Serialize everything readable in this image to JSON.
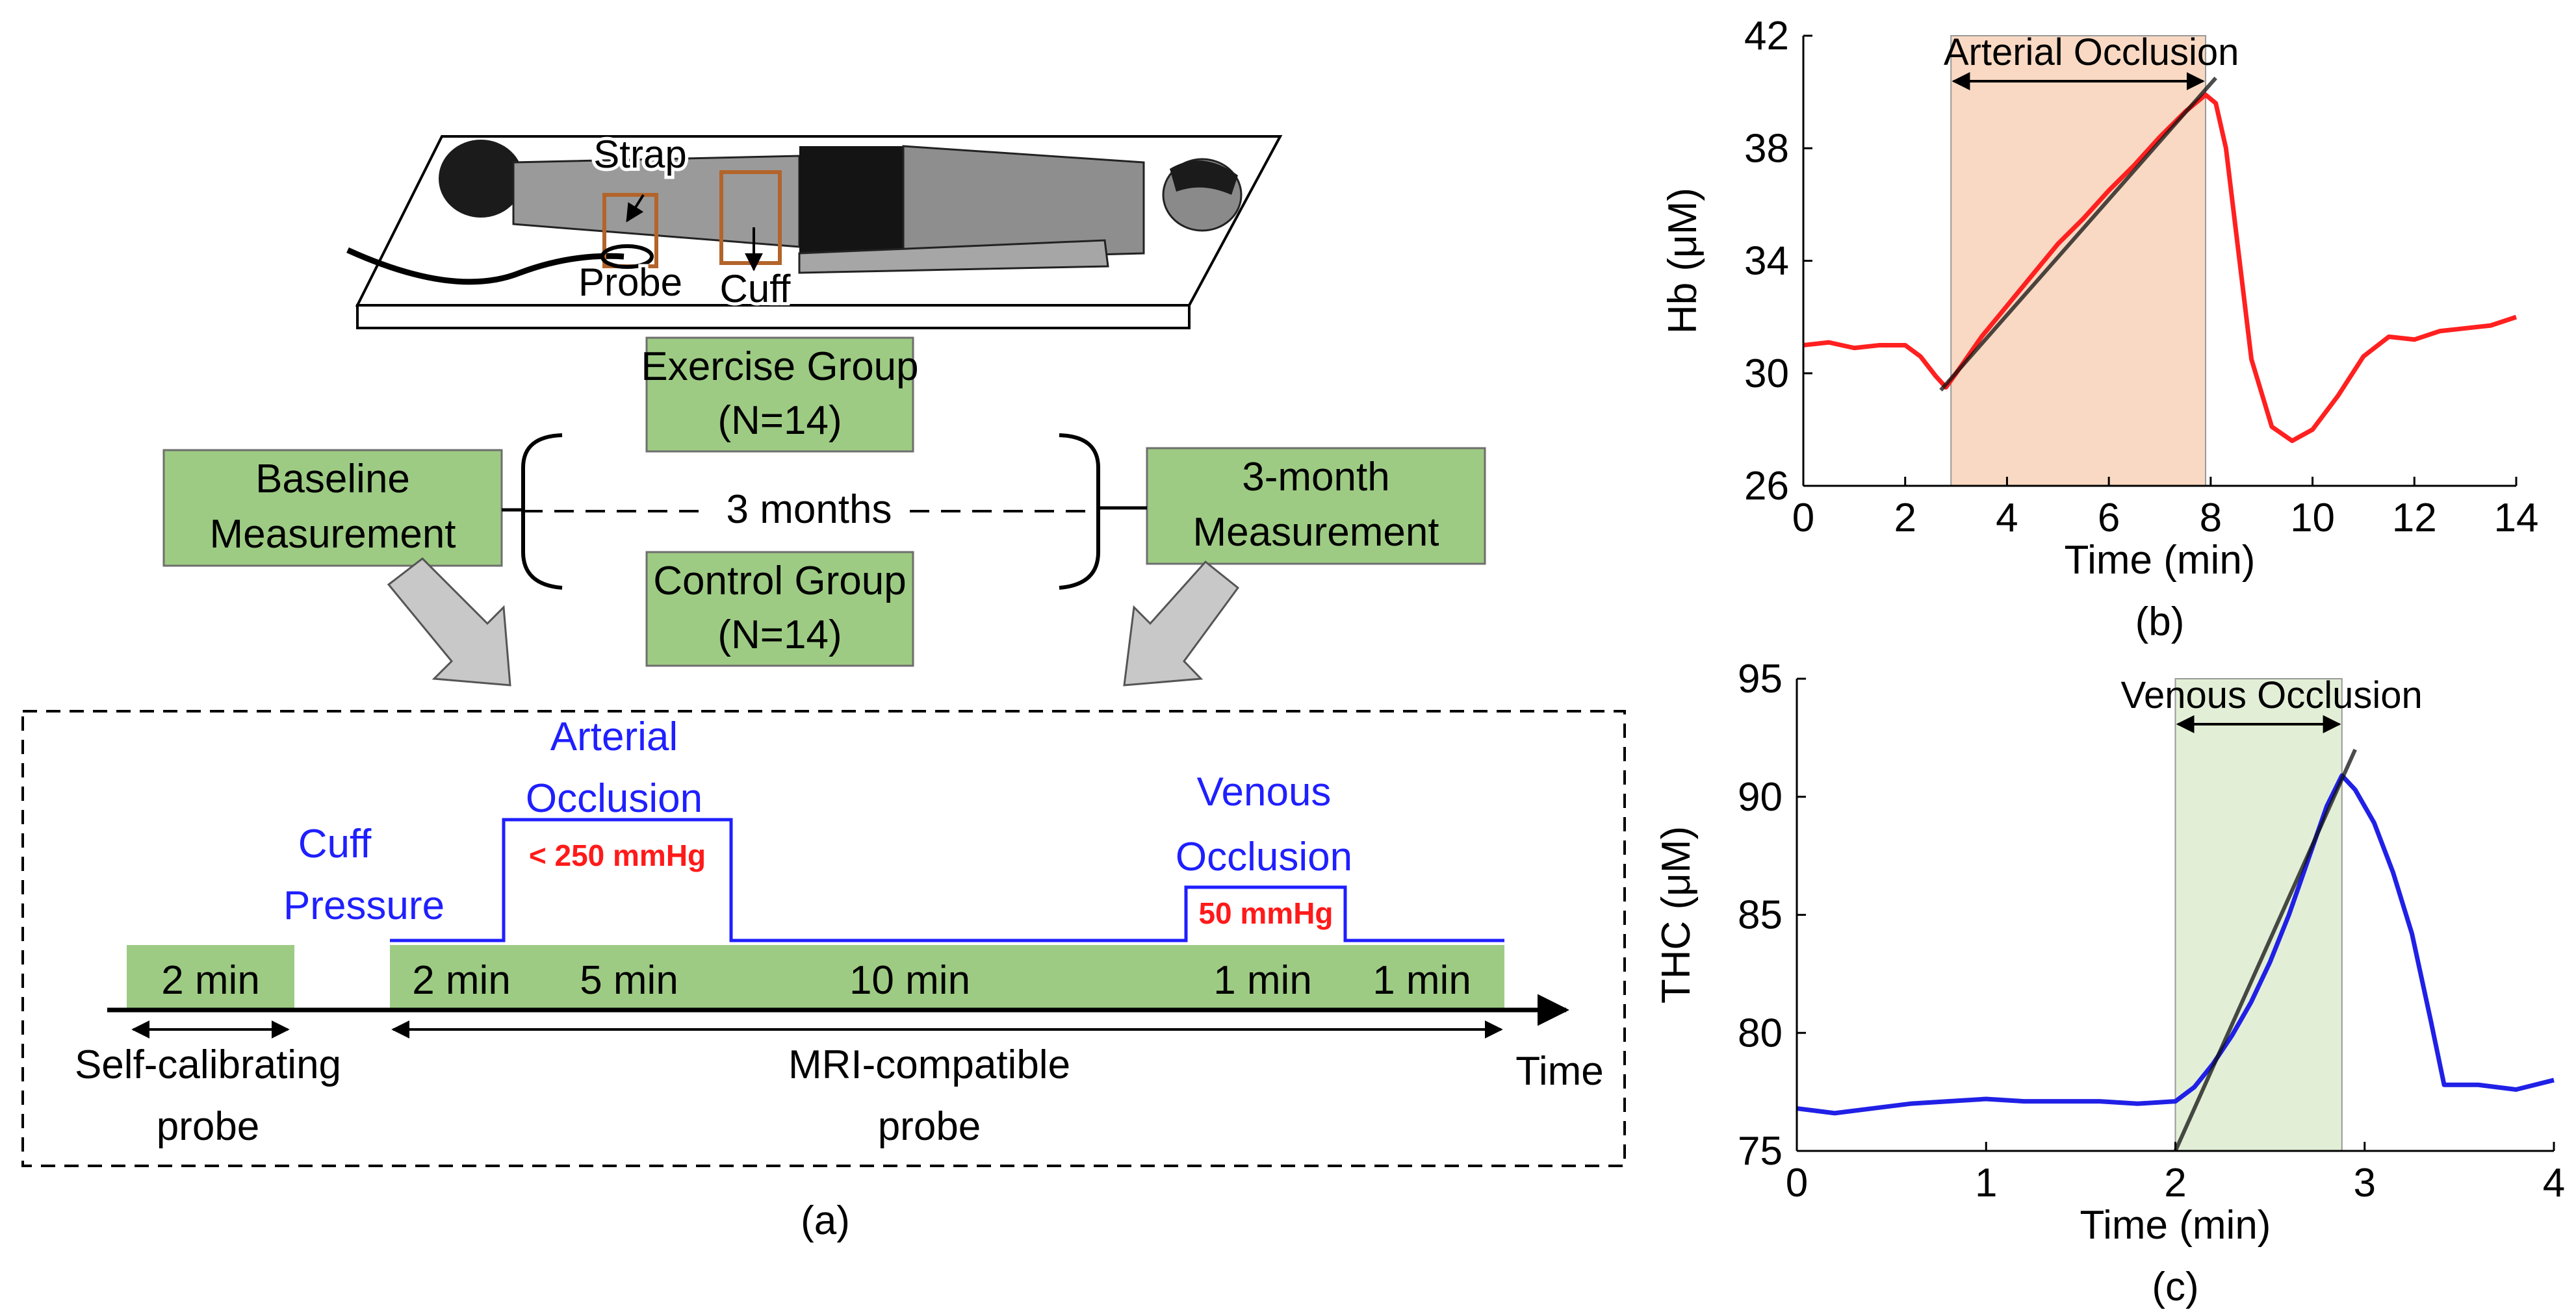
{
  "colors": {
    "green_box": "#9dcb83",
    "green_box_border": "#6e6e6e",
    "blue": "#1f1fff",
    "red": "#ff1a1a",
    "hb_line": "#ff2020",
    "thc_line": "#2020e6",
    "fit_line": "#555555",
    "arterial_shade": "#f9d9c3",
    "venous_shade": "#e2efd6",
    "arrow_gray": "#c8c8c8"
  },
  "panel_a": {
    "caption": "(a)",
    "person_labels": {
      "strap": "Strap",
      "probe": "Probe",
      "cuff": "Cuff"
    },
    "groups": {
      "exercise": {
        "line1": "Exercise Group",
        "line2": "(N=14)"
      },
      "control": {
        "line1": "Control Group",
        "line2": "(N=14)"
      }
    },
    "baseline": {
      "line1": "Baseline",
      "line2": "Measurement"
    },
    "followup": {
      "line1": "3-month",
      "line2": "Measurement"
    },
    "interval": "3 months",
    "cuff_pressure": {
      "line1": "Cuff",
      "line2": "Pressure"
    },
    "arterial": {
      "line1": "Arterial",
      "line2": "Occlusion",
      "pressure": "< 250 mmHg"
    },
    "venous": {
      "line1": "Venous",
      "line2": "Occlusion",
      "pressure": "50 mmHg"
    },
    "segments": [
      "2 min",
      "2 min",
      "5 min",
      "10 min",
      "1 min",
      "1 min"
    ],
    "self_cal": {
      "line1": "Self-calibrating",
      "line2": "probe"
    },
    "mri": {
      "line1": "MRI-compatible",
      "line2": "probe"
    },
    "time_label": "Time"
  },
  "chart_data": [
    {
      "type": "line",
      "id": "hb",
      "caption": "(b)",
      "title": "",
      "xlabel": "Time (min)",
      "ylabel": "Hb (μM)",
      "xlim": [
        0,
        14
      ],
      "ylim": [
        26,
        42
      ],
      "xticks": [
        0,
        2,
        4,
        6,
        8,
        10,
        12,
        14
      ],
      "yticks": [
        26,
        30,
        34,
        38,
        42
      ],
      "shaded_region": {
        "label": "Arterial Occlusion",
        "x": [
          2.9,
          7.9
        ]
      },
      "series": [
        {
          "x": [
            0,
            0.5,
            1,
            1.5,
            2,
            2.3,
            2.6,
            2.8,
            3,
            3.5,
            4,
            4.5,
            5,
            5.5,
            6,
            6.5,
            7,
            7.5,
            7.9,
            8.1,
            8.3,
            8.5,
            8.8,
            9.2,
            9.6,
            10,
            10.5,
            11,
            11.5,
            12,
            12.5,
            13,
            13.5,
            14
          ],
          "y": [
            31,
            31.1,
            30.9,
            31,
            31,
            30.6,
            29.9,
            29.5,
            30,
            31.3,
            32.4,
            33.5,
            34.6,
            35.5,
            36.5,
            37.4,
            38.4,
            39.3,
            39.9,
            39.6,
            38,
            35,
            30.5,
            28.1,
            27.6,
            28,
            29.2,
            30.6,
            31.3,
            31.2,
            31.5,
            31.6,
            31.7,
            32
          ]
        }
      ],
      "fit_line": {
        "x": [
          2.7,
          8.1
        ],
        "y": [
          29.4,
          40.5
        ]
      }
    },
    {
      "type": "line",
      "id": "thc",
      "caption": "(c)",
      "title": "",
      "xlabel": "Time (min)",
      "ylabel": "THC (μM)",
      "xlim": [
        0,
        4
      ],
      "ylim": [
        75,
        95
      ],
      "xticks": [
        0,
        1,
        2,
        3,
        4
      ],
      "yticks": [
        75,
        80,
        85,
        90,
        95
      ],
      "shaded_region": {
        "label": "Venous Occlusion",
        "x": [
          2.0,
          2.88
        ]
      },
      "series": [
        {
          "x": [
            0,
            0.2,
            0.4,
            0.6,
            0.8,
            1,
            1.2,
            1.4,
            1.6,
            1.8,
            2,
            2.1,
            2.2,
            2.3,
            2.4,
            2.5,
            2.6,
            2.7,
            2.8,
            2.88,
            2.95,
            3.05,
            3.15,
            3.25,
            3.35,
            3.42,
            3.6,
            3.8,
            4
          ],
          "y": [
            76.8,
            76.6,
            76.8,
            77,
            77.1,
            77.2,
            77.1,
            77.1,
            77.1,
            77,
            77.1,
            77.7,
            78.7,
            79.9,
            81.3,
            83,
            85,
            87.3,
            89.6,
            90.9,
            90.3,
            88.9,
            86.8,
            84.2,
            80.5,
            77.8,
            77.8,
            77.6,
            78
          ]
        }
      ],
      "fit_line": {
        "x": [
          2.0,
          2.95
        ],
        "y": [
          75,
          92
        ]
      }
    }
  ]
}
